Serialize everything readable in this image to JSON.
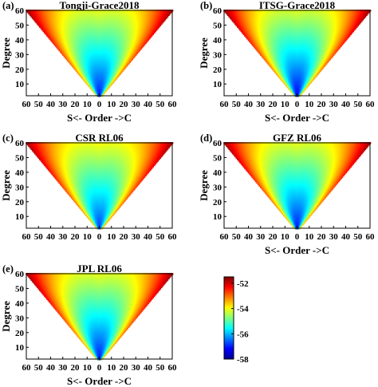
{
  "chart_data": {
    "type": "heatmap",
    "colormap": "jet",
    "colorbar": {
      "min": -58,
      "max": -51.5,
      "ticks": [
        -52,
        -54,
        -56,
        -58
      ]
    },
    "grid": false,
    "xlim": [
      -60,
      60
    ],
    "ylim": [
      2,
      60
    ],
    "x_tick_labels": [
      "60",
      "50",
      "40",
      "30",
      "20",
      "10",
      "0",
      "10",
      "20",
      "30",
      "40",
      "50",
      "60"
    ],
    "y_tick_labels": [
      "10",
      "20",
      "30",
      "40",
      "50",
      "60"
    ],
    "x_tick_values": [
      -60,
      -50,
      -40,
      -30,
      -20,
      -10,
      0,
      10,
      20,
      30,
      40,
      50,
      60
    ],
    "y_tick_values": [
      10,
      20,
      30,
      40,
      50,
      60
    ],
    "panels": [
      {
        "label": "(a)",
        "title": "Tongji-Grace2018",
        "xlabel": "S<- Order ->C",
        "ylabel": "Degree",
        "min_value": -57.8,
        "max_value": -51.8
      },
      {
        "label": "(b)",
        "title": "ITSG-Grace2018",
        "xlabel": "S<- Order ->C",
        "ylabel": "Degree",
        "min_value": -58.0,
        "max_value": -51.8
      },
      {
        "label": "(c)",
        "title": "CSR RL06",
        "xlabel": "",
        "ylabel": "Degree",
        "min_value": -57.5,
        "max_value": -51.8
      },
      {
        "label": "(d)",
        "title": "GFZ RL06",
        "xlabel": "S<- Order ->C",
        "ylabel": "Degree",
        "min_value": -57.8,
        "max_value": -51.8
      },
      {
        "label": "(e)",
        "title": "JPL RL06",
        "xlabel": "S<- Order ->C",
        "ylabel": "Degree",
        "min_value": -57.8,
        "max_value": -51.8
      }
    ]
  }
}
